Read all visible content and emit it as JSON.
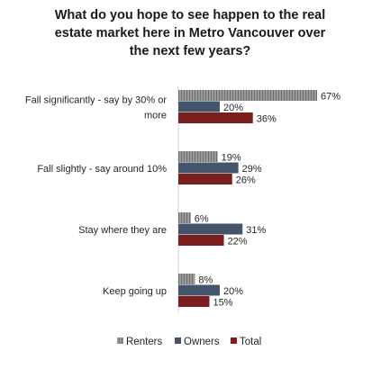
{
  "chart_data": {
    "type": "bar",
    "orientation": "horizontal",
    "title": [
      "What do you hope to see happen to the real",
      "estate market here in Metro Vancouver over",
      "the next few years?"
    ],
    "categories": [
      {
        "lines": [
          "Fall significantly - say by 30% or",
          "more"
        ]
      },
      {
        "lines": [
          "Fall slightly - say around 10%"
        ]
      },
      {
        "lines": [
          "Stay where they are"
        ]
      },
      {
        "lines": [
          "Keep going up"
        ]
      }
    ],
    "series": [
      {
        "name": "Renters",
        "color": "#8c8c8c",
        "pattern": "hatched",
        "values": [
          67,
          19,
          6,
          8
        ],
        "labels": [
          "67%",
          "19%",
          "6%",
          "8%"
        ]
      },
      {
        "name": "Owners",
        "color": "#44546a",
        "values": [
          20,
          29,
          31,
          20
        ],
        "labels": [
          "20%",
          "29%",
          "31%",
          "20%"
        ]
      },
      {
        "name": "Total",
        "color": "#7b1e1e",
        "values": [
          36,
          26,
          22,
          15
        ],
        "labels": [
          "36%",
          "26%",
          "22%",
          "15%"
        ]
      }
    ],
    "xlim": [
      0,
      100
    ],
    "legend_position": "bottom",
    "grid": false
  }
}
